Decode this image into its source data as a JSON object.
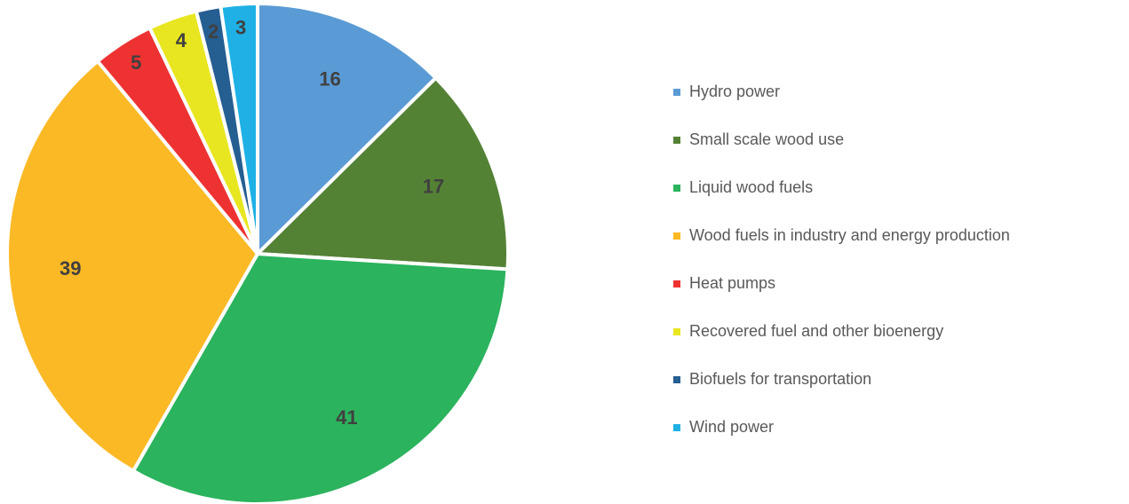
{
  "chart_data": {
    "type": "pie",
    "categories": [
      "Hydro power",
      "Small scale wood use",
      "Liquid wood fuels",
      "Wood fuels in industry and energy production",
      "Heat pumps",
      "Recovered fuel and other bioenergy",
      "Biofuels for transportation",
      "Wind power"
    ],
    "values": [
      16,
      17,
      41,
      39,
      5,
      4,
      2,
      3
    ],
    "colors": [
      "#5b9bd5",
      "#548235",
      "#2bb35d",
      "#fbb925",
      "#ee3232",
      "#e8e620",
      "#255e91",
      "#1fb1e6"
    ],
    "legend": "right"
  }
}
